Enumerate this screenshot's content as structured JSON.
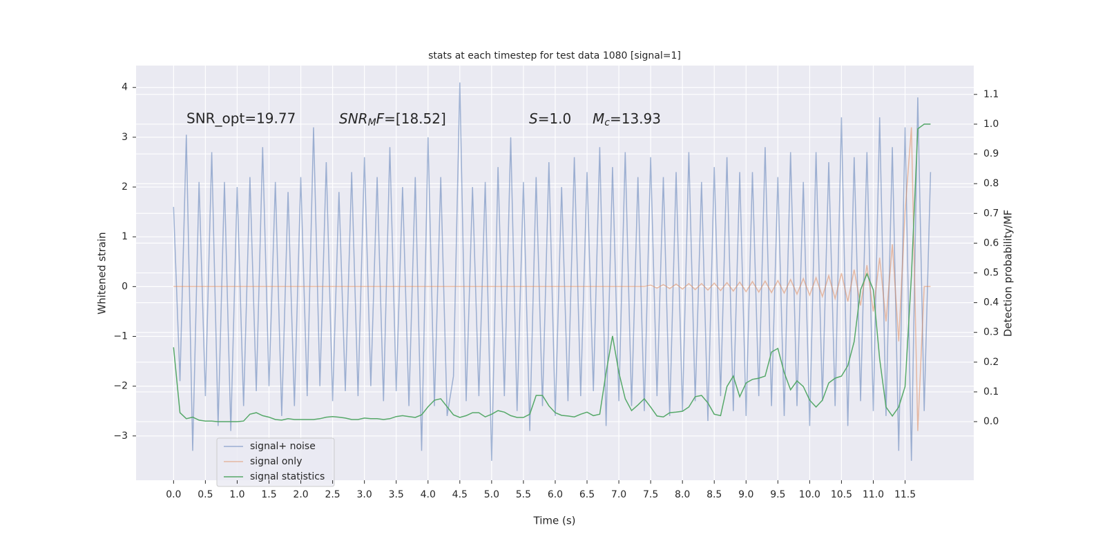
{
  "chart_data": {
    "type": "line",
    "title": "stats at each timestep for test data 1080 [signal=1]",
    "x_label": "Time (s)",
    "y_label": "Whitened strain",
    "y2_label": "Detection probability/MF",
    "annotations": [
      [
        "SNR_opt=19.77"
      ],
      [
        "SNR",
        "M",
        "F",
        "=[18.52]"
      ],
      [
        "S",
        "=1.0"
      ],
      [
        "M",
        "c",
        "=13.93"
      ]
    ],
    "legend": "lower left",
    "grid": true,
    "xlim": [
      -0.59,
      12.58
    ],
    "ylim": [
      -3.89,
      4.44
    ],
    "y2lim": [
      -0.197,
      1.197
    ],
    "xticks": [
      {
        "value": 0,
        "label": "0.0"
      },
      0.5,
      {
        "value": 1,
        "label": "1.0"
      },
      1.5,
      {
        "value": 2,
        "label": "2.0"
      },
      2.5,
      {
        "value": 3,
        "label": "3.0"
      },
      3.5,
      {
        "value": 4,
        "label": "4.0"
      },
      4.5,
      {
        "value": 5,
        "label": "5.0"
      },
      5.5,
      {
        "value": 6,
        "label": "6.0"
      },
      6.5,
      {
        "value": 7,
        "label": "7.0"
      },
      7.5,
      {
        "value": 8,
        "label": "8.0"
      },
      8.5,
      {
        "value": 9,
        "label": "9.0"
      },
      9.5,
      {
        "value": 10,
        "label": "10.0"
      },
      10.5,
      {
        "value": 11,
        "label": "11.0"
      },
      11.5
    ],
    "yticks": [
      {
        "value": -3,
        "label": "−3"
      },
      {
        "value": -2,
        "label": "−2"
      },
      {
        "value": -1,
        "label": "−1"
      },
      0,
      1,
      2,
      3,
      4
    ],
    "y2ticks": [
      {
        "value": 0,
        "label": "0.0"
      },
      0.1,
      0.2,
      0.3,
      0.4,
      0.5,
      0.6,
      0.7,
      0.8,
      0.9,
      {
        "value": 1,
        "label": "1.0"
      },
      1.1
    ],
    "x": [
      0.0,
      0.1,
      0.2,
      0.3,
      0.4,
      0.5,
      0.6,
      0.7,
      0.8,
      0.9,
      1.0,
      1.1,
      1.2,
      1.3,
      1.4,
      1.5,
      1.6,
      1.7,
      1.8,
      1.9,
      2.0,
      2.1,
      2.2,
      2.3,
      2.4,
      2.5,
      2.6,
      2.7,
      2.8,
      2.9,
      3.0,
      3.1,
      3.2,
      3.3,
      3.4,
      3.5,
      3.6,
      3.7,
      3.8,
      3.9,
      4.0,
      4.1,
      4.2,
      4.3,
      4.4,
      4.5,
      4.6,
      4.7,
      4.8,
      4.9,
      5.0,
      5.1,
      5.2,
      5.3,
      5.4,
      5.5,
      5.6,
      5.7,
      5.8,
      5.9,
      6.0,
      6.1,
      6.2,
      6.3,
      6.4,
      6.5,
      6.6,
      6.7,
      6.8,
      6.9,
      7.0,
      7.1,
      7.2,
      7.3,
      7.4,
      7.5,
      7.6,
      7.7,
      7.8,
      7.9,
      8.0,
      8.1,
      8.2,
      8.3,
      8.4,
      8.5,
      8.6,
      8.7,
      8.8,
      8.9,
      9.0,
      9.1,
      9.2,
      9.3,
      9.4,
      9.5,
      9.6,
      9.7,
      9.8,
      9.9,
      10.0,
      10.1,
      10.2,
      10.3,
      10.4,
      10.5,
      10.6,
      10.7,
      10.8,
      10.9,
      11.0,
      11.1,
      11.2,
      11.3,
      11.4,
      11.5,
      11.6,
      11.7,
      11.8,
      11.9
    ],
    "series": [
      {
        "name": "signal+ noise",
        "color": "#4c72b0",
        "opacity": 0.5,
        "values": [
          1.6,
          -1.9,
          3.05,
          -3.3,
          2.1,
          -2.2,
          2.7,
          -2.8,
          2.1,
          -2.9,
          2.0,
          -2.4,
          2.2,
          -2.1,
          2.8,
          -2.0,
          2.1,
          -2.6,
          1.9,
          -2.4,
          2.2,
          -2.2,
          3.2,
          -2.0,
          2.5,
          -2.3,
          1.9,
          -2.1,
          2.3,
          -2.2,
          2.6,
          -2.0,
          2.2,
          -2.3,
          2.8,
          -2.1,
          2.0,
          -2.4,
          2.2,
          -3.3,
          3.0,
          -2.4,
          2.2,
          -2.6,
          -1.8,
          4.1,
          -2.3,
          2.0,
          -2.2,
          2.1,
          -3.5,
          2.4,
          -2.2,
          3.0,
          -2.5,
          2.1,
          -2.9,
          2.2,
          -2.4,
          2.5,
          -2.6,
          2.0,
          -2.3,
          2.6,
          -2.2,
          2.3,
          -2.1,
          2.8,
          -2.8,
          2.4,
          -2.3,
          2.7,
          -2.4,
          2.2,
          -2.5,
          2.6,
          -2.2,
          2.2,
          -2.6,
          2.3,
          -2.5,
          2.7,
          -2.3,
          2.1,
          -2.7,
          2.4,
          -2.2,
          2.6,
          -2.5,
          2.3,
          -2.6,
          2.3,
          -2.2,
          2.8,
          -2.4,
          2.2,
          -2.6,
          2.7,
          -2.4,
          2.1,
          -2.8,
          2.7,
          -2.3,
          2.5,
          -2.4,
          3.4,
          -2.8,
          2.6,
          -2.3,
          2.7,
          -2.5,
          3.4,
          -2.6,
          2.8,
          -3.3,
          3.2,
          -3.5,
          3.8,
          -2.5,
          2.3
        ]
      },
      {
        "name": "signal only",
        "color": "#dd8452",
        "opacity": 0.5,
        "values": [
          0,
          0,
          0,
          0,
          0,
          0,
          0,
          0,
          0,
          0,
          0,
          0,
          0,
          0,
          0,
          0,
          0,
          0,
          0,
          0,
          0,
          0,
          0,
          0,
          0,
          0,
          0,
          0,
          0,
          0,
          0,
          0,
          0,
          0,
          0,
          0,
          0,
          0,
          0,
          0,
          0,
          0,
          0,
          0,
          0,
          0,
          0,
          0,
          0,
          0,
          0,
          0,
          0,
          0,
          0,
          0,
          0,
          0,
          0,
          0,
          0,
          0,
          0,
          0,
          0,
          0,
          0,
          0,
          0,
          0,
          0,
          0,
          0,
          0,
          0,
          0.03,
          -0.03,
          0.04,
          -0.04,
          0.05,
          -0.05,
          0.06,
          -0.06,
          0.06,
          -0.07,
          0.07,
          -0.08,
          0.08,
          -0.09,
          0.09,
          -0.1,
          0.1,
          -0.11,
          0.11,
          -0.12,
          0.12,
          -0.13,
          0.14,
          -0.15,
          0.16,
          -0.17,
          0.18,
          -0.2,
          0.22,
          -0.24,
          0.27,
          -0.3,
          0.34,
          -0.38,
          0.43,
          -0.5,
          0.58,
          -0.7,
          0.85,
          -1.1,
          1.5,
          3.2,
          -2.9,
          0,
          0
        ]
      },
      {
        "name": "signal statistics",
        "color": "#55a868",
        "opacity": 1,
        "axis": "y2",
        "values": [
          0.25,
          0.03,
          0.01,
          0.015,
          0.005,
          0.002,
          0.002,
          0,
          0,
          0,
          0,
          0.002,
          0.025,
          0.03,
          0.02,
          0.015,
          0.007,
          0.005,
          0.01,
          0.007,
          0.007,
          0.007,
          0.007,
          0.01,
          0.015,
          0.017,
          0.015,
          0.012,
          0.007,
          0.007,
          0.012,
          0.01,
          0.01,
          0.007,
          0.01,
          0.017,
          0.02,
          0.017,
          0.014,
          0.023,
          0.05,
          0.072,
          0.077,
          0.05,
          0.023,
          0.014,
          0.02,
          0.03,
          0.03,
          0.016,
          0.025,
          0.037,
          0.032,
          0.02,
          0.014,
          0.014,
          0.025,
          0.088,
          0.088,
          0.053,
          0.03,
          0.021,
          0.019,
          0.016,
          0.025,
          0.032,
          0.02,
          0.025,
          0.165,
          0.288,
          0.165,
          0.077,
          0.037,
          0.056,
          0.077,
          0.049,
          0.019,
          0.016,
          0.03,
          0.032,
          0.035,
          0.049,
          0.084,
          0.088,
          0.063,
          0.025,
          0.02,
          0.118,
          0.153,
          0.084,
          0.13,
          0.142,
          0.146,
          0.153,
          0.234,
          0.246,
          0.165,
          0.107,
          0.137,
          0.118,
          0.072,
          0.049,
          0.072,
          0.13,
          0.146,
          0.153,
          0.188,
          0.269,
          0.443,
          0.497,
          0.443,
          0.211,
          0.049,
          0.019,
          0.049,
          0.118,
          0.49,
          0.984,
          1.0,
          1.0
        ]
      }
    ]
  }
}
